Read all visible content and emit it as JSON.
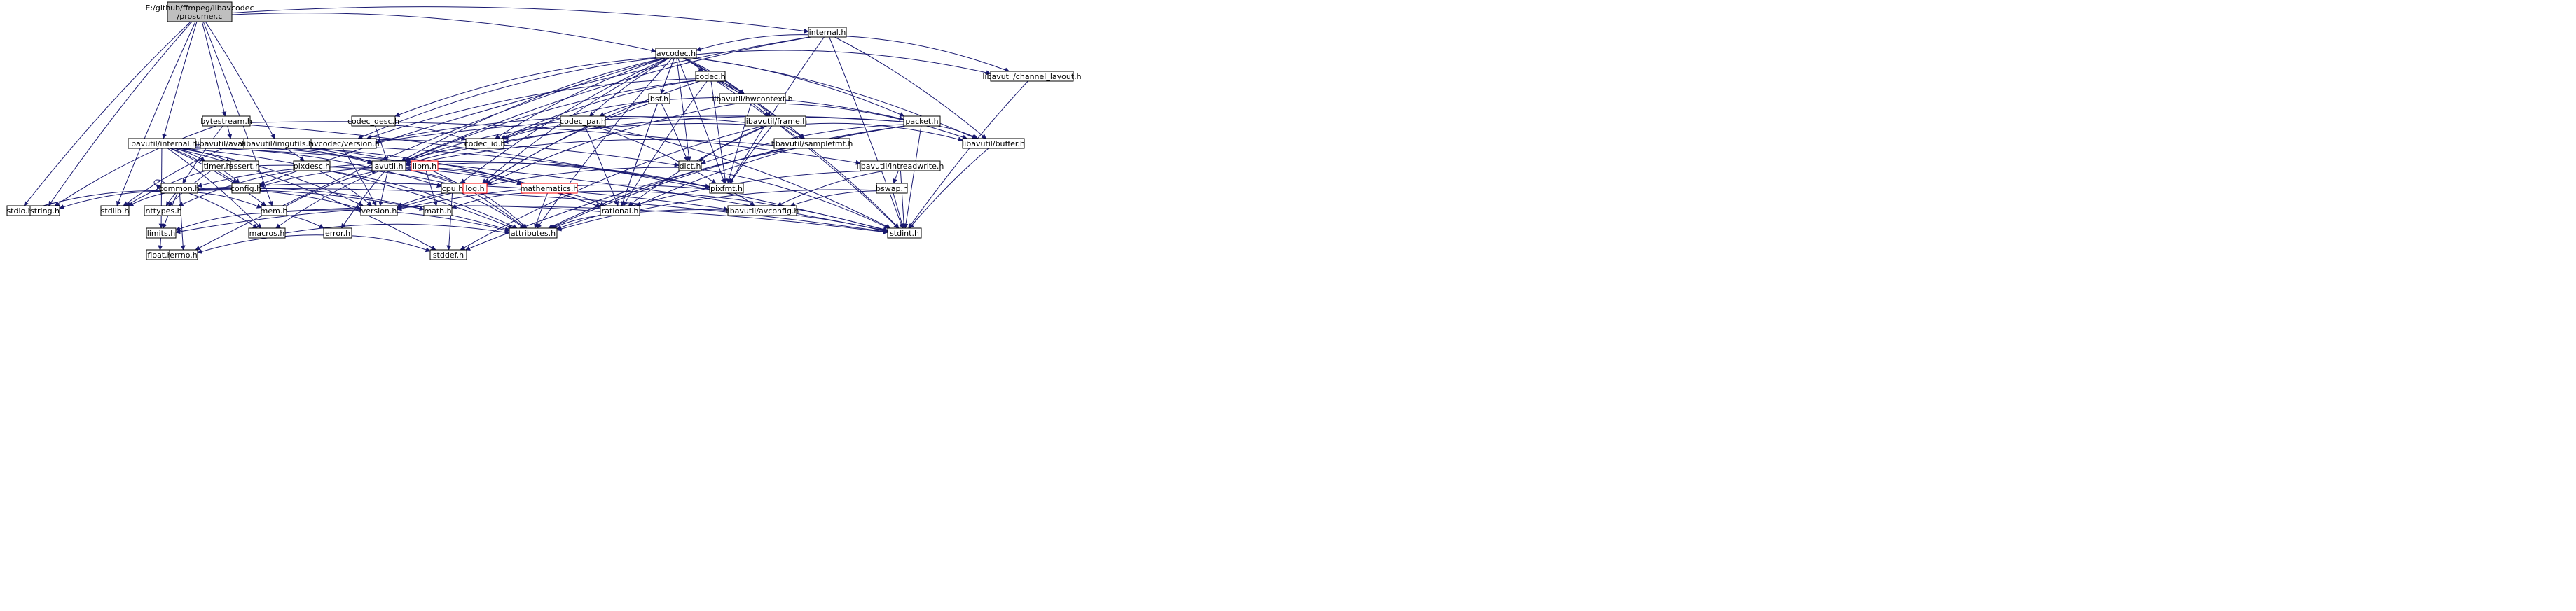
{
  "graph": {
    "title": "E:/github/ffmpeg/libavcodec/prosumer.c",
    "edge_color": "#191970",
    "root_fill": "#bfbfbf",
    "link_border_color": "#ff0000",
    "nodes": [
      {
        "id": "root",
        "lines": [
          "E:/github/ffmpeg/libavcodec",
          "/prosumer.c"
        ],
        "style": "root"
      },
      {
        "id": "internal_h",
        "lines": [
          "internal.h"
        ]
      },
      {
        "id": "avcodec_h",
        "lines": [
          "avcodec.h"
        ]
      },
      {
        "id": "channel_layout_h",
        "lines": [
          "libavutil/channel_layout.h"
        ]
      },
      {
        "id": "codec_h",
        "lines": [
          "codec.h"
        ]
      },
      {
        "id": "hwcontext_h",
        "lines": [
          "libavutil/hwcontext.h"
        ]
      },
      {
        "id": "bsf_h",
        "lines": [
          "bsf.h"
        ]
      },
      {
        "id": "codec_desc_h",
        "lines": [
          "codec_desc.h"
        ]
      },
      {
        "id": "codec_par_h",
        "lines": [
          "codec_par.h"
        ]
      },
      {
        "id": "frame_h",
        "lines": [
          "libavutil/frame.h"
        ]
      },
      {
        "id": "packet_h",
        "lines": [
          "packet.h"
        ]
      },
      {
        "id": "bytestream_h",
        "lines": [
          "bytestream.h"
        ]
      },
      {
        "id": "lavc_version_h",
        "lines": [
          "libavcodec/version.h"
        ]
      },
      {
        "id": "codec_id_h",
        "lines": [
          "codec_id.h"
        ]
      },
      {
        "id": "samplefmt_h",
        "lines": [
          "libavutil/samplefmt.h"
        ]
      },
      {
        "id": "buffer_h",
        "lines": [
          "libavutil/buffer.h"
        ]
      },
      {
        "id": "lavu_internal_h",
        "lines": [
          "libavutil/internal.h"
        ]
      },
      {
        "id": "avassert_h",
        "lines": [
          "libavutil/avassert.h"
        ]
      },
      {
        "id": "imgutils_h",
        "lines": [
          "libavutil/imgutils.h"
        ]
      },
      {
        "id": "avutil_h",
        "lines": [
          "avutil.h"
        ]
      },
      {
        "id": "libm_h",
        "lines": [
          "libm.h"
        ],
        "style": "redlink"
      },
      {
        "id": "dict_h",
        "lines": [
          "dict.h"
        ]
      },
      {
        "id": "intreadwrite_h",
        "lines": [
          "libavutil/intreadwrite.h"
        ]
      },
      {
        "id": "timer_h",
        "lines": [
          "timer.h"
        ]
      },
      {
        "id": "assert_h",
        "lines": [
          "assert.h"
        ]
      },
      {
        "id": "pixdesc_h",
        "lines": [
          "pixdesc.h"
        ]
      },
      {
        "id": "config_h",
        "lines": [
          "config.h"
        ]
      },
      {
        "id": "cpu_h",
        "lines": [
          "cpu.h"
        ]
      },
      {
        "id": "log_h",
        "lines": [
          "log.h"
        ],
        "style": "redlink"
      },
      {
        "id": "mathematics_h",
        "lines": [
          "mathematics.h"
        ],
        "style": "redlink"
      },
      {
        "id": "pixfmt_h",
        "lines": [
          "pixfmt.h"
        ]
      },
      {
        "id": "bswap_h",
        "lines": [
          "bswap.h"
        ]
      },
      {
        "id": "common_h",
        "lines": [
          "common.h"
        ]
      },
      {
        "id": "stdio_h",
        "lines": [
          "stdio.h"
        ]
      },
      {
        "id": "string_h",
        "lines": [
          "string.h"
        ]
      },
      {
        "id": "stdlib_h",
        "lines": [
          "stdlib.h"
        ]
      },
      {
        "id": "inttypes_h",
        "lines": [
          "inttypes.h"
        ]
      },
      {
        "id": "version_h",
        "lines": [
          "version.h"
        ]
      },
      {
        "id": "math_h",
        "lines": [
          "math.h"
        ]
      },
      {
        "id": "avconfig_h",
        "lines": [
          "libavutil/avconfig.h"
        ]
      },
      {
        "id": "mem_h",
        "lines": [
          "mem.h"
        ]
      },
      {
        "id": "rational_h",
        "lines": [
          "rational.h"
        ]
      },
      {
        "id": "limits_h",
        "lines": [
          "limits.h"
        ]
      },
      {
        "id": "macros_h",
        "lines": [
          "macros.h"
        ]
      },
      {
        "id": "attributes_h",
        "lines": [
          "attributes.h"
        ]
      },
      {
        "id": "stdint_h",
        "lines": [
          "stdint.h"
        ]
      },
      {
        "id": "error_h",
        "lines": [
          "error.h"
        ]
      },
      {
        "id": "float_h",
        "lines": [
          "float.h"
        ]
      },
      {
        "id": "errno_h",
        "lines": [
          "errno.h"
        ]
      },
      {
        "id": "stddef_h",
        "lines": [
          "stddef.h"
        ]
      }
    ],
    "edges": [
      [
        "root",
        "internal_h"
      ],
      [
        "root",
        "avcodec_h"
      ],
      [
        "root",
        "bytestream_h"
      ],
      [
        "root",
        "lavu_internal_h"
      ],
      [
        "root",
        "imgutils_h"
      ],
      [
        "root",
        "stdio_h"
      ],
      [
        "root",
        "string_h"
      ],
      [
        "root",
        "stdlib_h"
      ],
      [
        "root",
        "mem_h"
      ],
      [
        "internal_h",
        "avcodec_h"
      ],
      [
        "internal_h",
        "channel_layout_h"
      ],
      [
        "internal_h",
        "buffer_h"
      ],
      [
        "internal_h",
        "pixfmt_h"
      ],
      [
        "internal_h",
        "stdint_h"
      ],
      [
        "internal_h",
        "config_h"
      ],
      [
        "internal_h",
        "avutil_h"
      ],
      [
        "avcodec_h",
        "errno_h"
      ],
      [
        "avcodec_h",
        "bsf_h"
      ],
      [
        "avcodec_h",
        "codec_h"
      ],
      [
        "avcodec_h",
        "codec_desc_h"
      ],
      [
        "avcodec_h",
        "codec_id_h"
      ],
      [
        "avcodec_h",
        "codec_par_h"
      ],
      [
        "avcodec_h",
        "lavc_version_h"
      ],
      [
        "avcodec_h",
        "samplefmt_h"
      ],
      [
        "avcodec_h",
        "attributes_h"
      ],
      [
        "avcodec_h",
        "avutil_h"
      ],
      [
        "avcodec_h",
        "buffer_h"
      ],
      [
        "avcodec_h",
        "cpu_h"
      ],
      [
        "avcodec_h",
        "channel_layout_h"
      ],
      [
        "avcodec_h",
        "dict_h"
      ],
      [
        "avcodec_h",
        "frame_h"
      ],
      [
        "avcodec_h",
        "hwcontext_h"
      ],
      [
        "avcodec_h",
        "log_h"
      ],
      [
        "avcodec_h",
        "pixfmt_h"
      ],
      [
        "avcodec_h",
        "rational_h"
      ],
      [
        "avcodec_h",
        "packet_h"
      ],
      [
        "channel_layout_h",
        "stdint_h"
      ],
      [
        "codec_h",
        "stdint_h"
      ],
      [
        "codec_h",
        "avutil_h"
      ],
      [
        "codec_h",
        "hwcontext_h"
      ],
      [
        "codec_h",
        "log_h"
      ],
      [
        "codec_h",
        "pixfmt_h"
      ],
      [
        "codec_h",
        "rational_h"
      ],
      [
        "codec_h",
        "samplefmt_h"
      ],
      [
        "codec_h",
        "codec_id_h"
      ],
      [
        "codec_h",
        "lavc_version_h"
      ],
      [
        "hwcontext_h",
        "buffer_h"
      ],
      [
        "hwcontext_h",
        "frame_h"
      ],
      [
        "hwcontext_h",
        "log_h"
      ],
      [
        "hwcontext_h",
        "pixfmt_h"
      ],
      [
        "bsf_h",
        "dict_h"
      ],
      [
        "bsf_h",
        "log_h"
      ],
      [
        "bsf_h",
        "rational_h"
      ],
      [
        "bsf_h",
        "codec_id_h"
      ],
      [
        "bsf_h",
        "codec_par_h"
      ],
      [
        "bsf_h",
        "packet_h"
      ],
      [
        "codec_desc_h",
        "avutil_h"
      ],
      [
        "codec_desc_h",
        "codec_id_h"
      ],
      [
        "codec_par_h",
        "stdint_h"
      ],
      [
        "codec_par_h",
        "avutil_h"
      ],
      [
        "codec_par_h",
        "rational_h"
      ],
      [
        "codec_par_h",
        "pixfmt_h"
      ],
      [
        "codec_par_h",
        "codec_id_h"
      ],
      [
        "frame_h",
        "stddef_h"
      ],
      [
        "frame_h",
        "stdint_h"
      ],
      [
        "frame_h",
        "avutil_h"
      ],
      [
        "frame_h",
        "buffer_h"
      ],
      [
        "frame_h",
        "dict_h"
      ],
      [
        "frame_h",
        "rational_h"
      ],
      [
        "frame_h",
        "samplefmt_h"
      ],
      [
        "frame_h",
        "pixfmt_h"
      ],
      [
        "frame_h",
        "lavc_version_h"
      ],
      [
        "packet_h",
        "stddef_h"
      ],
      [
        "packet_h",
        "stdint_h"
      ],
      [
        "packet_h",
        "attributes_h"
      ],
      [
        "packet_h",
        "buffer_h"
      ],
      [
        "packet_h",
        "dict_h"
      ],
      [
        "packet_h",
        "rational_h"
      ],
      [
        "packet_h",
        "codec_id_h"
      ],
      [
        "packet_h",
        "lavc_version_h"
      ],
      [
        "bytestream_h",
        "stdint_h"
      ],
      [
        "bytestream_h",
        "string_h"
      ],
      [
        "bytestream_h",
        "avassert_h"
      ],
      [
        "bytestream_h",
        "common_h"
      ],
      [
        "bytestream_h",
        "intreadwrite_h"
      ],
      [
        "lavc_version_h",
        "version_h"
      ],
      [
        "codec_id_h",
        "avutil_h"
      ],
      [
        "samplefmt_h",
        "avutil_h"
      ],
      [
        "samplefmt_h",
        "attributes_h"
      ],
      [
        "buffer_h",
        "stdint_h"
      ],
      [
        "lavu_internal_h",
        "limits_h"
      ],
      [
        "lavu_internal_h",
        "stdint_h"
      ],
      [
        "lavu_internal_h",
        "stddef_h"
      ],
      [
        "lavu_internal_h",
        "assert_h"
      ],
      [
        "lavu_internal_h",
        "config_h"
      ],
      [
        "lavu_internal_h",
        "attributes_h"
      ],
      [
        "lavu_internal_h",
        "timer_h"
      ],
      [
        "lavu_internal_h",
        "cpu_h"
      ],
      [
        "lavu_internal_h",
        "dict_h"
      ],
      [
        "lavu_internal_h",
        "macros_h"
      ],
      [
        "lavu_internal_h",
        "mem_h"
      ],
      [
        "lavu_internal_h",
        "pixfmt_h"
      ],
      [
        "lavu_internal_h",
        "version_h"
      ],
      [
        "lavu_internal_h",
        "libm_h"
      ],
      [
        "avassert_h",
        "stdlib_h"
      ],
      [
        "avassert_h",
        "avutil_h"
      ],
      [
        "avassert_h",
        "log_h"
      ],
      [
        "imgutils_h",
        "avutil_h"
      ],
      [
        "imgutils_h",
        "pixdesc_h"
      ],
      [
        "imgutils_h",
        "rational_h"
      ],
      [
        "avutil_h",
        "common_h"
      ],
      [
        "avutil_h",
        "error_h"
      ],
      [
        "avutil_h",
        "rational_h"
      ],
      [
        "avutil_h",
        "version_h"
      ],
      [
        "avutil_h",
        "macros_h"
      ],
      [
        "avutil_h",
        "mathematics_h"
      ],
      [
        "avutil_h",
        "log_h"
      ],
      [
        "avutil_h",
        "pixfmt_h"
      ],
      [
        "libm_h",
        "math_h"
      ],
      [
        "libm_h",
        "config_h"
      ],
      [
        "libm_h",
        "attributes_h"
      ],
      [
        "libm_h",
        "intfloat_h"
      ],
      [
        "libm_h",
        "mathematics_h"
      ],
      [
        "dict_h",
        "stdint_h"
      ],
      [
        "dict_h",
        "version_h"
      ],
      [
        "intreadwrite_h",
        "stdint_h"
      ],
      [
        "intreadwrite_h",
        "avconfig_h"
      ],
      [
        "intreadwrite_h",
        "attributes_h"
      ],
      [
        "intreadwrite_h",
        "bswap_h"
      ],
      [
        "timer_h",
        "config_h"
      ],
      [
        "timer_h",
        "inttypes_h"
      ],
      [
        "timer_h",
        "stdlib_h"
      ],
      [
        "timer_h",
        "log_h"
      ],
      [
        "pixdesc_h",
        "inttypes_h"
      ],
      [
        "pixdesc_h",
        "attributes_h"
      ],
      [
        "pixdesc_h",
        "pixfmt_h"
      ],
      [
        "pixdesc_h",
        "version_h"
      ],
      [
        "cpu_h",
        "stddef_h"
      ],
      [
        "cpu_h",
        "attributes_h"
      ],
      [
        "log_h",
        "stdarg_h"
      ],
      [
        "log_h",
        "attributes_h"
      ],
      [
        "log_h",
        "version_h"
      ],
      [
        "mathematics_h",
        "stdint_h"
      ],
      [
        "mathematics_h",
        "math_h"
      ],
      [
        "mathematics_h",
        "attributes_h"
      ],
      [
        "mathematics_h",
        "rational_h"
      ],
      [
        "mathematics_h",
        "intfloat_h"
      ],
      [
        "pixfmt_h",
        "version_h"
      ],
      [
        "pixfmt_h",
        "avconfig_h"
      ],
      [
        "bswap_h",
        "stdint_h"
      ],
      [
        "bswap_h",
        "avconfig_h"
      ],
      [
        "bswap_h",
        "attributes_h"
      ],
      [
        "common_h",
        "errno_h"
      ],
      [
        "common_h",
        "inttypes_h"
      ],
      [
        "common_h",
        "limits_h"
      ],
      [
        "common_h",
        "math_h"
      ],
      [
        "common_h",
        "stdint_h"
      ],
      [
        "common_h",
        "stdio_h"
      ],
      [
        "common_h",
        "stdlib_h"
      ],
      [
        "common_h",
        "string_h"
      ],
      [
        "common_h",
        "attributes_h"
      ],
      [
        "common_h",
        "macros_h"
      ],
      [
        "common_h",
        "version_h"
      ],
      [
        "common_h",
        "avconfig_h"
      ],
      [
        "common_h",
        "mem_h"
      ],
      [
        "common_h",
        "common_h"
      ],
      [
        "mem_h",
        "limits_h"
      ],
      [
        "mem_h",
        "stdint_h"
      ],
      [
        "mem_h",
        "attributes_h"
      ],
      [
        "mem_h",
        "error_h"
      ],
      [
        "mem_h",
        "avutil_h"
      ],
      [
        "rational_h",
        "stdint_h"
      ],
      [
        "rational_h",
        "limits_h"
      ],
      [
        "rational_h",
        "attributes_h"
      ],
      [
        "error_h",
        "errno_h"
      ],
      [
        "error_h",
        "stddef_h"
      ],
      [
        "limits_h",
        "float_h"
      ],
      [
        "macros_h",
        "attributes_h"
      ]
    ]
  }
}
